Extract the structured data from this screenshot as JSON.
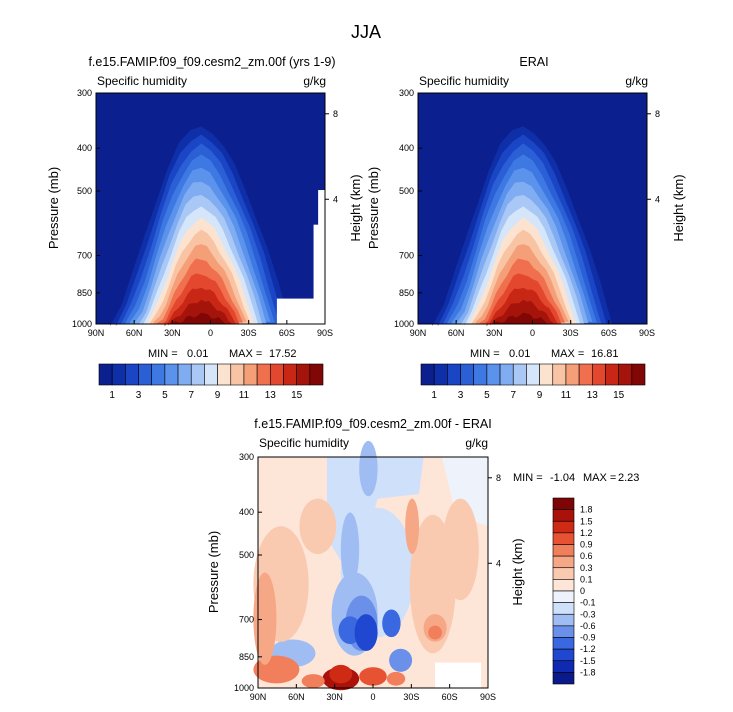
{
  "figure_title": "JJA",
  "chart_data": [
    {
      "type": "heatmap",
      "title": "f.e15.FAMIP.f09_f09.cesm2_zm.00f (yrs 1-9)",
      "subtitle_left": "Specific humidity",
      "units": "g/kg",
      "ylabel": "Pressure (mb)",
      "ylabel_right": "Height (km)",
      "x_ticks": [
        "90N",
        "60N",
        "30N",
        "0",
        "30S",
        "60S",
        "90S"
      ],
      "y_ticks": [
        "300",
        "400",
        "500",
        "700",
        "850",
        "1000"
      ],
      "right_ticks": [
        "8",
        "4"
      ],
      "min_label": "MIN =",
      "min_value": "0.01",
      "max_label": "MAX =",
      "max_value": "17.52",
      "colorbar_levels": [
        "1",
        "3",
        "5",
        "7",
        "9",
        "11",
        "13",
        "15"
      ],
      "peak_g_per_kg": 17.52
    },
    {
      "type": "heatmap",
      "title": "ERAI",
      "subtitle_left": "Specific humidity",
      "units": "g/kg",
      "ylabel": "Pressure (mb)",
      "ylabel_right": "Height (km)",
      "x_ticks": [
        "90N",
        "60N",
        "30N",
        "0",
        "30S",
        "60S",
        "90S"
      ],
      "y_ticks": [
        "300",
        "400",
        "500",
        "700",
        "850",
        "1000"
      ],
      "right_ticks": [
        "8",
        "4"
      ],
      "min_label": "MIN =",
      "min_value": "0.01",
      "max_label": "MAX =",
      "max_value": "16.81",
      "colorbar_levels": [
        "1",
        "3",
        "5",
        "7",
        "9",
        "11",
        "13",
        "15"
      ],
      "peak_g_per_kg": 16.81
    },
    {
      "type": "heatmap",
      "title": "f.e15.FAMIP.f09_f09.cesm2_zm.00f - ERAI",
      "subtitle_left": "Specific humidity",
      "units": "g/kg",
      "ylabel": "Pressure (mb)",
      "ylabel_right": "Height (km)",
      "x_ticks": [
        "90N",
        "60N",
        "30N",
        "0",
        "30S",
        "60S",
        "90S"
      ],
      "y_ticks": [
        "300",
        "400",
        "500",
        "700",
        "850",
        "1000"
      ],
      "right_ticks": [
        "8",
        "4"
      ],
      "min_label": "MIN =",
      "min_value": "-1.04",
      "max_label": "MAX =",
      "max_value": "2.23",
      "colorbar_levels": [
        "1.8",
        "1.5",
        "1.2",
        "0.9",
        "0.6",
        "0.3",
        "0.1",
        "0",
        "-0.1",
        "-0.3",
        "-0.6",
        "-0.9",
        "-1.2",
        "-1.5",
        "-1.8"
      ]
    }
  ],
  "colors": {
    "humidity_scale": [
      "#0b1f8f",
      "#0f2fa8",
      "#1a45c4",
      "#2a5fd6",
      "#3d78e3",
      "#5a92ec",
      "#80adf2",
      "#a9c8f6",
      "#d6e6fa",
      "#fbe3d0",
      "#f8c4a4",
      "#f59f78",
      "#f06f4e",
      "#e3482f",
      "#c92716",
      "#a4140a",
      "#800705"
    ],
    "diff_scale": [
      "#0a1a8a",
      "#0f2ab0",
      "#1f47cf",
      "#3a68e0",
      "#6a90ea",
      "#9fbcf3",
      "#cfe0fa",
      "#eef3fb",
      "#fde6d8",
      "#f9c9b0",
      "#f6a786",
      "#f27f5c",
      "#e75233",
      "#cf2a14",
      "#a9110a",
      "#7d0505"
    ],
    "missing": "#ffffff"
  }
}
